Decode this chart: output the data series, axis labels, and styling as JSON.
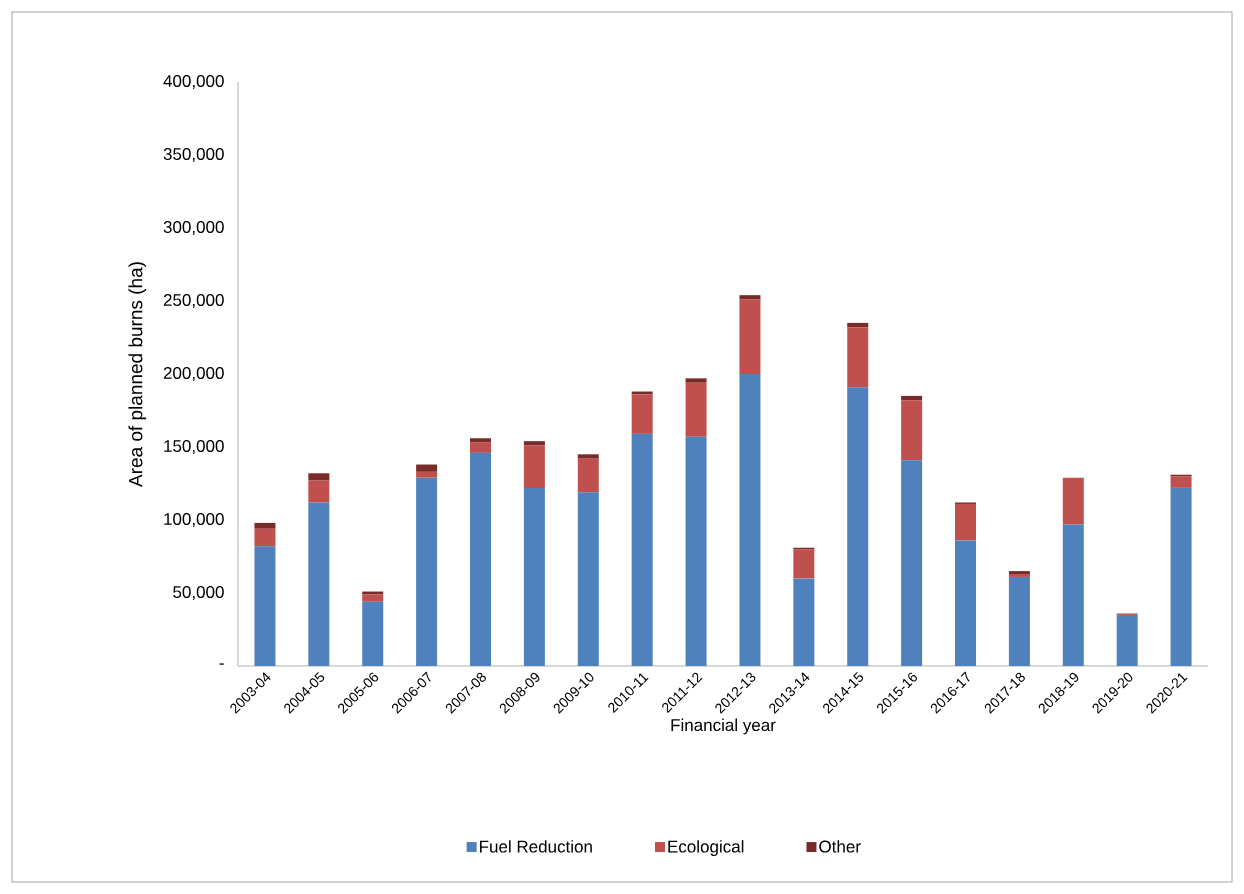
{
  "chart_data": {
    "type": "bar",
    "stacked": true,
    "xlabel": "Financial year",
    "ylabel": "Area of planned burns (ha)",
    "categories": [
      "2003-04",
      "2004-05",
      "2005-06",
      "2006-07",
      "2007-08",
      "2008-09",
      "2009-10",
      "2010-11",
      "2011-12",
      "2012-13",
      "2013-14",
      "2014-15",
      "2015-16",
      "2016-17",
      "2017-18",
      "2018-19",
      "2019-20",
      "2020-21"
    ],
    "series": [
      {
        "name": "Fuel Reduction",
        "color": "#4f81bd",
        "values": [
          82000,
          112000,
          44000,
          129000,
          146000,
          122000,
          119000,
          159000,
          157000,
          200000,
          60000,
          191000,
          141000,
          86000,
          61000,
          97000,
          35000,
          122000
        ]
      },
      {
        "name": "Ecological",
        "color": "#c0504d",
        "values": [
          12000,
          15000,
          5000,
          4000,
          7000,
          29000,
          23000,
          27000,
          37000,
          51000,
          20000,
          41000,
          41000,
          25000,
          2000,
          32000,
          1000,
          8000
        ]
      },
      {
        "name": "Other",
        "color": "#772c2a",
        "values": [
          4000,
          5000,
          2000,
          5000,
          3000,
          3000,
          3000,
          2000,
          3000,
          3000,
          1000,
          3000,
          3000,
          1000,
          2000,
          0,
          0,
          1000
        ]
      }
    ],
    "ylim": [
      0,
      400000
    ],
    "yticks": [
      {
        "value": 0,
        "label": "-"
      },
      {
        "value": 50000,
        "label": "50,000"
      },
      {
        "value": 100000,
        "label": "100,000"
      },
      {
        "value": 150000,
        "label": "150,000"
      },
      {
        "value": 200000,
        "label": "200,000"
      },
      {
        "value": 250000,
        "label": "250,000"
      },
      {
        "value": 300000,
        "label": "300,000"
      },
      {
        "value": 350000,
        "label": "350,000"
      },
      {
        "value": 400000,
        "label": "400,000"
      }
    ],
    "grid": false,
    "legend": "bottom"
  }
}
